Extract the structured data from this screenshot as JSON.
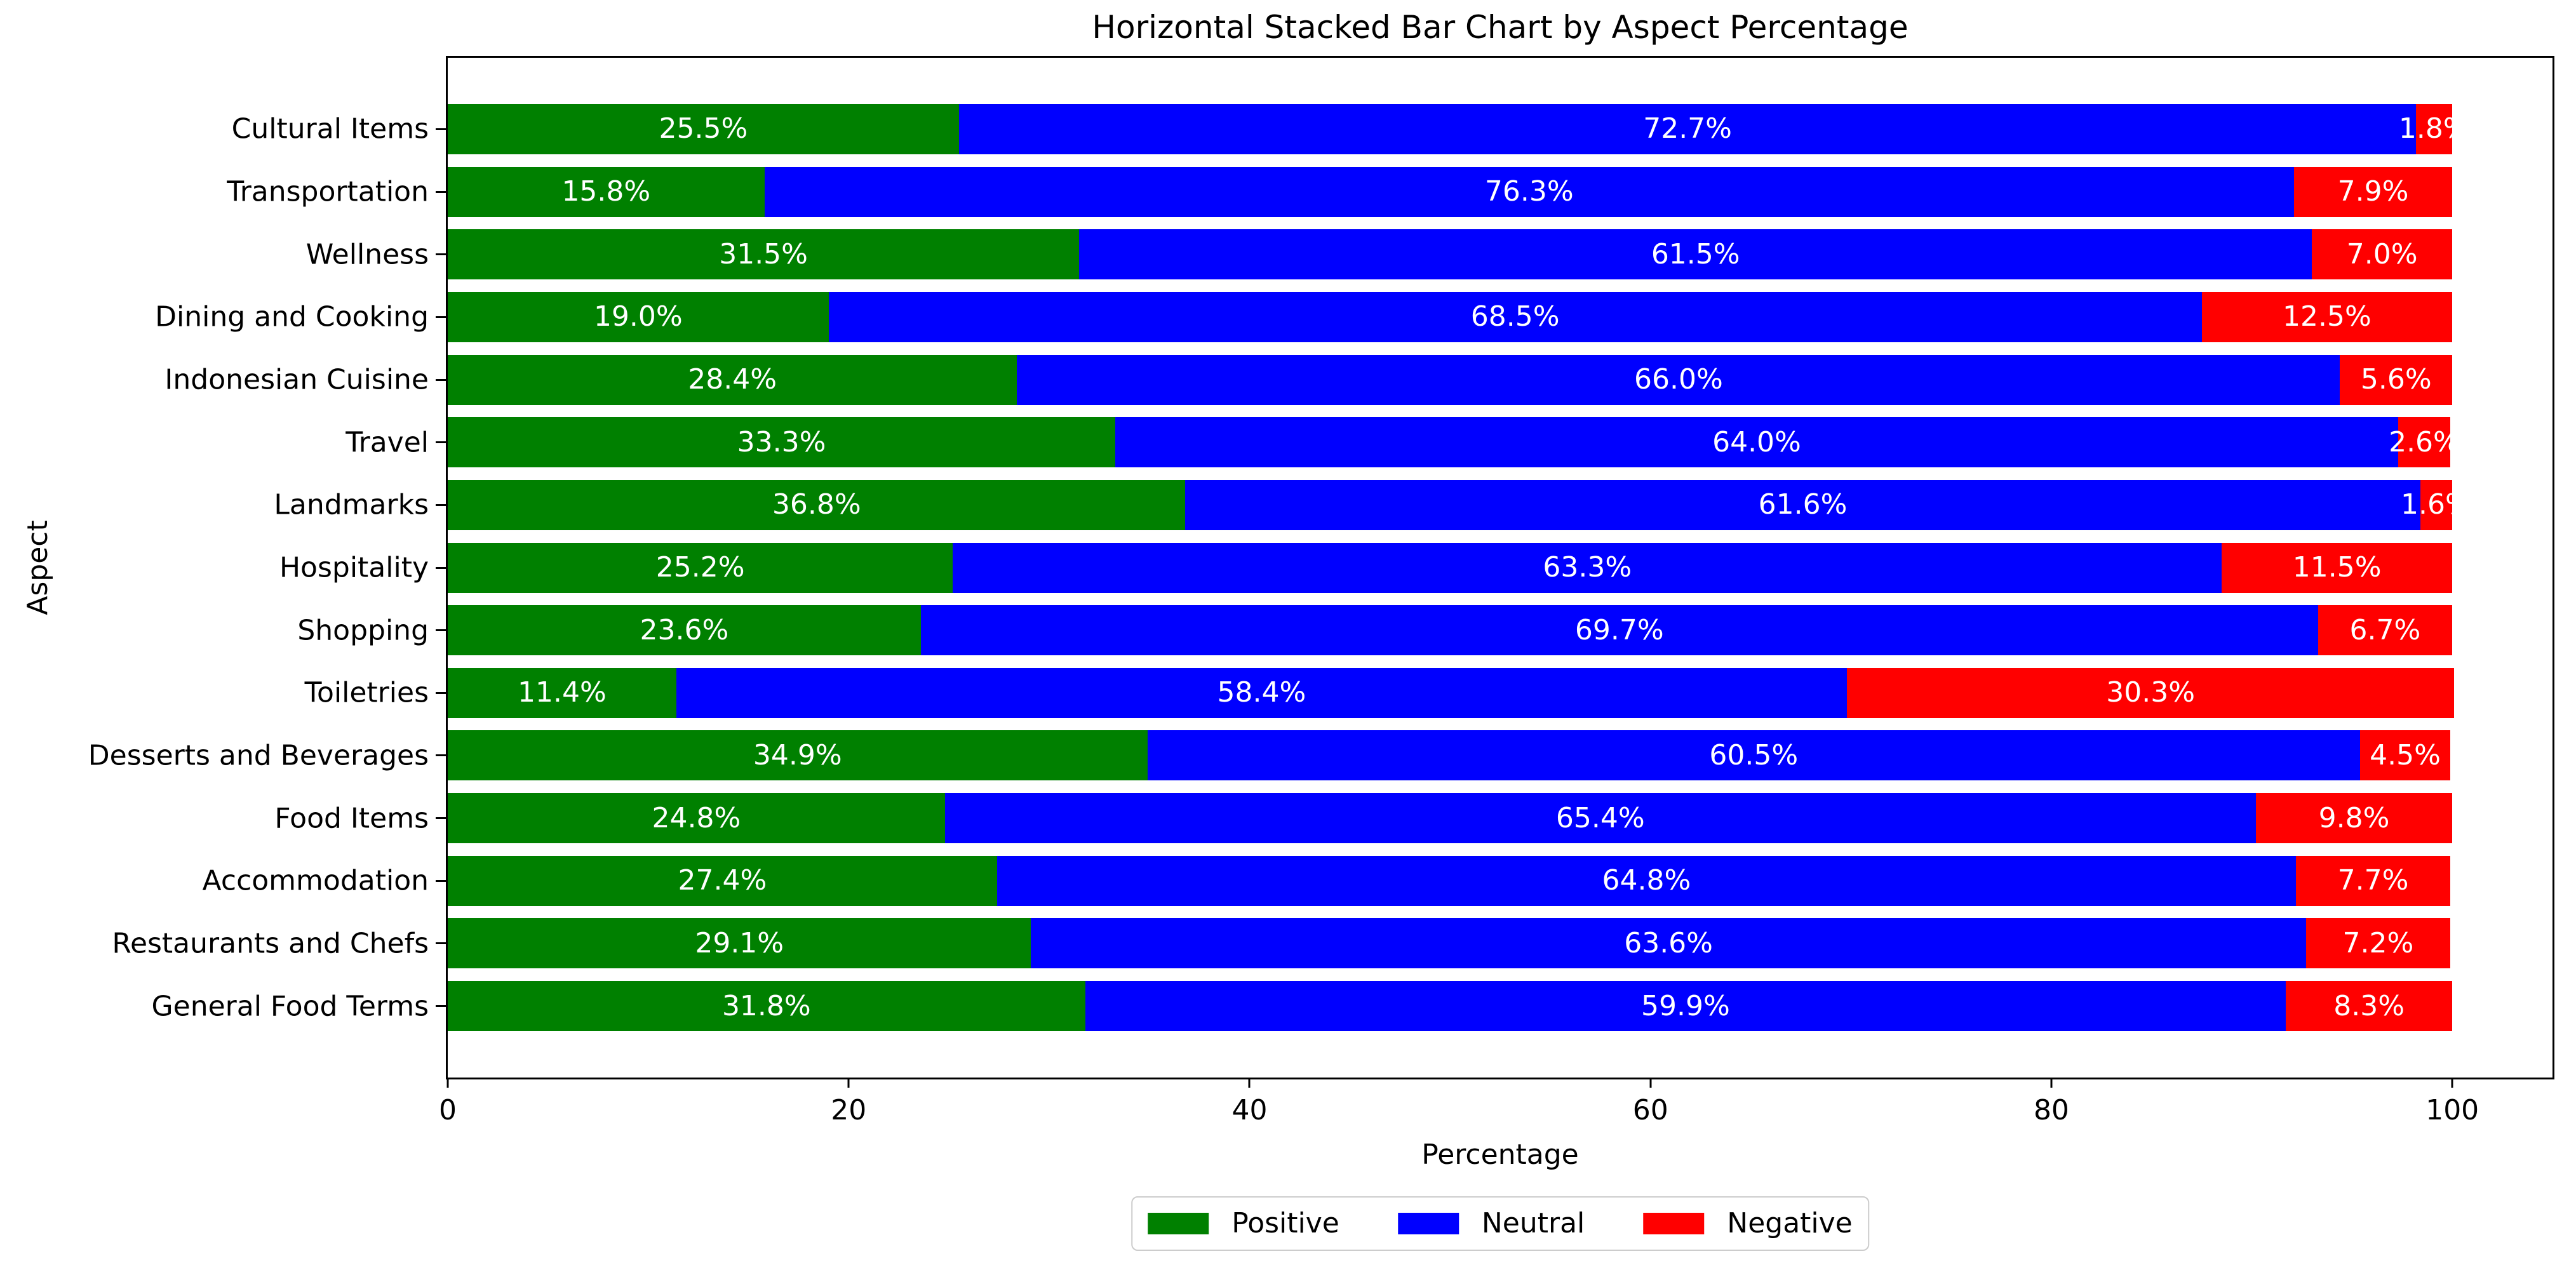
{
  "chart_data": {
    "type": "bar",
    "orientation": "horizontal",
    "stacked": true,
    "title": "Horizontal Stacked Bar Chart by Aspect Percentage",
    "xlabel": "Percentage",
    "ylabel": "Aspect",
    "xlim": [
      0,
      105
    ],
    "xticks": [
      0,
      20,
      40,
      60,
      80,
      100
    ],
    "grid": false,
    "legend_position": "bottom-center",
    "value_label_color": "#ffffff",
    "value_label_suffix": "%",
    "categories": [
      "Cultural Items",
      "Transportation",
      "Wellness",
      "Dining and Cooking",
      "Indonesian Cuisine",
      "Travel",
      "Landmarks",
      "Hospitality",
      "Shopping",
      "Toiletries",
      "Desserts and Beverages",
      "Food Items",
      "Accommodation",
      "Restaurants and Chefs",
      "General Food Terms"
    ],
    "series": [
      {
        "name": "Positive",
        "color": "#008000",
        "values": [
          25.5,
          15.8,
          31.5,
          19.0,
          28.4,
          33.3,
          36.8,
          25.2,
          23.6,
          11.4,
          34.9,
          24.8,
          27.4,
          29.1,
          31.8
        ]
      },
      {
        "name": "Neutral",
        "color": "#0000ff",
        "values": [
          72.7,
          76.3,
          61.5,
          68.5,
          66.0,
          64.0,
          61.6,
          63.3,
          69.7,
          58.4,
          60.5,
          65.4,
          64.8,
          63.6,
          59.9
        ]
      },
      {
        "name": "Negative",
        "color": "#ff0000",
        "values": [
          1.8,
          7.9,
          7.0,
          12.5,
          5.6,
          2.6,
          1.6,
          11.5,
          6.7,
          30.3,
          4.5,
          9.8,
          7.7,
          7.2,
          8.3
        ]
      }
    ]
  }
}
